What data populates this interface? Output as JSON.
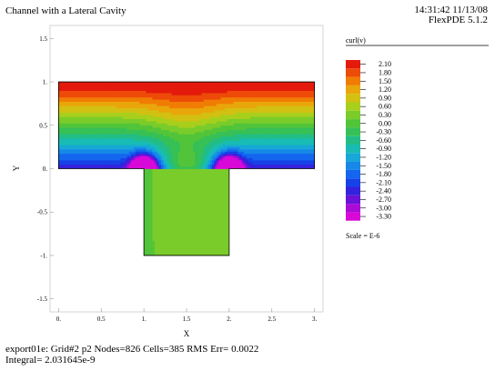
{
  "title": "Channel with a Lateral Cavity",
  "timestamp": "14:31:42 11/13/08",
  "software": "FlexPDE 5.1.2",
  "footer": {
    "line1": "export01e:  Grid#2  p2  Nodes=826 Cells=385 RMS Err= 0.0022",
    "line2": "Integral=  2.031645e-9"
  },
  "chart_data": {
    "type": "heatmap",
    "title": "Channel with a Lateral Cavity",
    "variable": "curl(v)",
    "xlabel": "X",
    "ylabel": "Y",
    "xlim": [
      -0.1,
      3.1
    ],
    "ylim": [
      -1.65,
      1.65
    ],
    "x_ticks": [
      "0.",
      "0.5",
      "1.",
      "1.5",
      "2.",
      "2.5",
      "3."
    ],
    "x_tick_values": [
      0,
      0.5,
      1,
      1.5,
      2,
      2.5,
      3
    ],
    "y_ticks": [
      "1.5",
      "1.",
      "0.5",
      "0.",
      "-0.5",
      "-1.",
      "-1.5"
    ],
    "y_tick_values": [
      1.5,
      1,
      0.5,
      0,
      -0.5,
      -1,
      -1.5
    ],
    "domain": {
      "channel": {
        "x": [
          0,
          3
        ],
        "y": [
          0,
          1
        ]
      },
      "cavity": {
        "x": [
          1,
          2
        ],
        "y": [
          -1,
          0
        ]
      }
    },
    "legend": {
      "title": "curl(v)",
      "placement": "right",
      "scale_note": "Scale = E-6",
      "levels": [
        "2.10",
        "1.80",
        "1.50",
        "1.20",
        "0.90",
        "0.60",
        "0.30",
        "0.00",
        "-0.30",
        "-0.60",
        "-0.90",
        "-1.20",
        "-1.50",
        "-1.80",
        "-2.10",
        "-2.40",
        "-2.70",
        "-3.00",
        "-3.30"
      ],
      "colors": [
        "#e31a0c",
        "#ee4a08",
        "#f07c04",
        "#e9a60a",
        "#d2c012",
        "#a8cf1c",
        "#7acc2a",
        "#52c43a",
        "#36c056",
        "#22bd86",
        "#18bcb4",
        "#16a8d6",
        "#1788e8",
        "#1466ee",
        "#1642e8",
        "#3422dc",
        "#6a12d8",
        "#a80cd6",
        "#d808d8"
      ]
    }
  }
}
